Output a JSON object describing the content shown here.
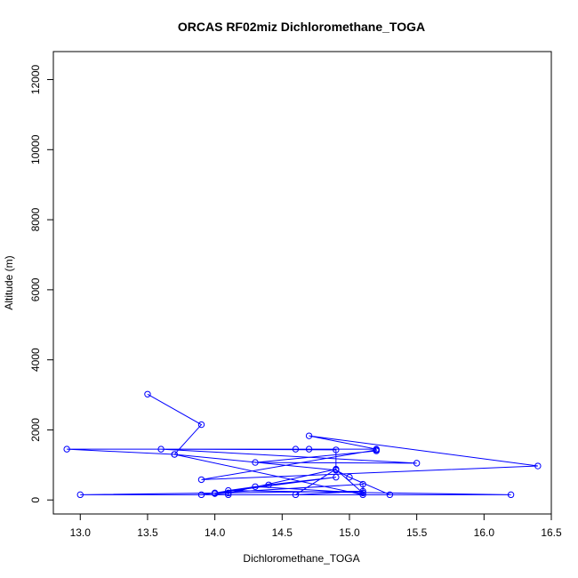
{
  "chart_data": {
    "type": "line",
    "title": "ORCAS RF02miz Dichloromethane_TOGA",
    "xlabel": "Dichloromethane_TOGA",
    "ylabel": "Altitude (m)",
    "xlim": [
      12.8,
      16.5
    ],
    "ylim": [
      -400,
      12800
    ],
    "x_ticks": [
      13.0,
      13.5,
      14.0,
      14.5,
      15.0,
      15.5,
      16.0,
      16.5
    ],
    "x_tick_labels": [
      "13.0",
      "13.5",
      "14.0",
      "14.5",
      "15.0",
      "15.5",
      "16.0",
      "16.5"
    ],
    "y_ticks": [
      0,
      2000,
      4000,
      6000,
      8000,
      10000,
      12000
    ],
    "y_tick_labels": [
      "0",
      "2000",
      "4000",
      "6000",
      "8000",
      "10000",
      "12000"
    ],
    "grid": false,
    "series": [
      {
        "color": "#0000ff",
        "marker": "open-circle",
        "line": true,
        "x": [
          13.5,
          13.9,
          13.7,
          12.9,
          14.6,
          14.7,
          15.2,
          14.7,
          16.4,
          13.9,
          15.2,
          15.2,
          14.3,
          15.5,
          13.6,
          14.9,
          14.9,
          15.1,
          14.3,
          14.0,
          15.1,
          15.1,
          13.7,
          14.9,
          15.0,
          15.3,
          13.9,
          14.9,
          14.4,
          14.1,
          16.2,
          13.0,
          15.1,
          14.6,
          14.9,
          14.1,
          14.1,
          14.0
        ],
        "y": [
          3020,
          2150,
          1300,
          1450,
          1450,
          1450,
          1450,
          1830,
          970,
          580,
          1430,
          1400,
          1070,
          1050,
          1450,
          1430,
          870,
          200,
          380,
          200,
          450,
          150,
          1300,
          850,
          650,
          150,
          150,
          650,
          430,
          270,
          150,
          150,
          250,
          150,
          880,
          200,
          150,
          180
        ]
      }
    ]
  }
}
